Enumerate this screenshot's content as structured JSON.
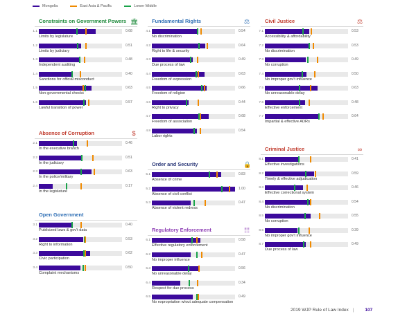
{
  "legend": [
    {
      "name": "Mongolia",
      "color": "#3c0a9c"
    },
    {
      "name": "East Asia & Pacific",
      "color": "#f08a00"
    },
    {
      "name": "Lower Middle",
      "color": "#1aa34a"
    }
  ],
  "colors": {
    "green_section": "#1f8a3c",
    "blue_section": "#2f6fb5",
    "red_section": "#c0392b",
    "purple_section": "#8e3fb5",
    "navy_section": "#2d3a7a"
  },
  "chart_data": {
    "type": "bar",
    "xlim": [
      0,
      1
    ],
    "sections": [
      {
        "key": "constraints",
        "title": "Constraints on Government Powers",
        "color": "#1f8a3c",
        "icon": "building-icon",
        "rows": [
          {
            "code": "1.1",
            "label": "Limits by legislature",
            "score_text": "0.68",
            "value": 0.68,
            "east_asia": 0.57,
            "lower_middle": 0.46
          },
          {
            "code": "1.2",
            "label": "Limits by judiciary",
            "score_text": "0.51",
            "value": 0.51,
            "east_asia": 0.57,
            "lower_middle": 0.47
          },
          {
            "code": "1.3",
            "label": "Independent auditing",
            "score_text": "0.48",
            "value": 0.48,
            "east_asia": 0.55,
            "lower_middle": 0.49
          },
          {
            "code": "1.4",
            "label": "Sanctions for official misconduct",
            "score_text": "0.40",
            "value": 0.4,
            "east_asia": 0.5,
            "lower_middle": 0.4
          },
          {
            "code": "1.5",
            "label": "Non-governmental checks",
            "score_text": "0.63",
            "value": 0.63,
            "east_asia": 0.53,
            "lower_middle": 0.56
          },
          {
            "code": "1.6",
            "label": "Lawful transition of power",
            "score_text": "0.57",
            "value": 0.57,
            "east_asia": 0.6,
            "lower_middle": 0.54
          }
        ]
      },
      {
        "key": "corruption",
        "title": "Absence of Corruption",
        "color": "#c0392b",
        "icon": "money-bag-icon",
        "rows": [
          {
            "code": "2.1",
            "label": "In the executive branch",
            "score_text": "0.46",
            "value": 0.46,
            "east_asia": 0.58,
            "lower_middle": 0.42
          },
          {
            "code": "2.2",
            "label": "In the judiciary",
            "score_text": "0.51",
            "value": 0.51,
            "east_asia": 0.65,
            "lower_middle": 0.52
          },
          {
            "code": "2.3",
            "label": "In the police/military",
            "score_text": "0.63",
            "value": 0.63,
            "east_asia": 0.67,
            "lower_middle": 0.51
          },
          {
            "code": "2.4",
            "label": "In the legislature",
            "score_text": "0.17",
            "value": 0.17,
            "east_asia": 0.51,
            "lower_middle": 0.33
          }
        ]
      },
      {
        "key": "open_gov",
        "title": "Open Government",
        "color": "#2f6fb5",
        "icon": "",
        "rows": [
          {
            "code": "3.1",
            "label": "Publicized laws & gov't data",
            "score_text": "0.40",
            "value": 0.4,
            "east_asia": 0.51,
            "lower_middle": 0.4
          },
          {
            "code": "3.2",
            "label": "Right to information",
            "score_text": "0.53",
            "value": 0.53,
            "east_asia": 0.56,
            "lower_middle": 0.55
          },
          {
            "code": "3.3",
            "label": "Civic participation",
            "score_text": "0.62",
            "value": 0.62,
            "east_asia": 0.56,
            "lower_middle": 0.54
          },
          {
            "code": "3.4",
            "label": "Complaint mechanisms",
            "score_text": "0.50",
            "value": 0.5,
            "east_asia": 0.56,
            "lower_middle": 0.53
          }
        ]
      },
      {
        "key": "fundamental",
        "title": "Fundamental Rights",
        "color": "#2f6fb5",
        "icon": "scales-icon",
        "rows": [
          {
            "code": "4.1",
            "label": "No discrimination",
            "score_text": "0.54",
            "value": 0.54,
            "east_asia": 0.59,
            "lower_middle": 0.55
          },
          {
            "code": "4.2",
            "label": "Right to life & security",
            "score_text": "0.64",
            "value": 0.64,
            "east_asia": 0.67,
            "lower_middle": 0.57
          },
          {
            "code": "4.3",
            "label": "Due process of law",
            "score_text": "0.49",
            "value": 0.49,
            "east_asia": 0.55,
            "lower_middle": 0.47
          },
          {
            "code": "4.4",
            "label": "Freedom of expression",
            "score_text": "0.63",
            "value": 0.63,
            "east_asia": 0.56,
            "lower_middle": 0.53
          },
          {
            "code": "4.5",
            "label": "Freedom of religion",
            "score_text": "0.66",
            "value": 0.66,
            "east_asia": 0.63,
            "lower_middle": 0.6
          },
          {
            "code": "4.6",
            "label": "Right to privacy",
            "score_text": "0.44",
            "value": 0.44,
            "east_asia": 0.56,
            "lower_middle": 0.42
          },
          {
            "code": "4.7",
            "label": "Freedom of association",
            "score_text": "0.68",
            "value": 0.68,
            "east_asia": 0.58,
            "lower_middle": 0.57
          },
          {
            "code": "4.8",
            "label": "Labor rights",
            "score_text": "0.54",
            "value": 0.54,
            "east_asia": 0.58,
            "lower_middle": 0.51
          }
        ]
      },
      {
        "key": "order",
        "title": "Order and Security",
        "color": "#2d3a7a",
        "icon": "lock-icon",
        "rows": [
          {
            "code": "5.1",
            "label": "Absence of crime",
            "score_text": "0.83",
            "value": 0.83,
            "east_asia": 0.78,
            "lower_middle": 0.69
          },
          {
            "code": "5.2",
            "label": "Absence of civil conflict",
            "score_text": "1.00",
            "value": 1.0,
            "east_asia": 0.93,
            "lower_middle": 0.84
          },
          {
            "code": "5.3",
            "label": "Absence of violent redress",
            "score_text": "0.47",
            "value": 0.47,
            "east_asia": 0.64,
            "lower_middle": 0.51
          }
        ]
      },
      {
        "key": "regulatory",
        "title": "Regulatory Enforcement",
        "color": "#8e3fb5",
        "icon": "document-icon",
        "rows": [
          {
            "code": "6.1",
            "label": "Effective regulatory enforcement",
            "score_text": "0.58",
            "value": 0.58,
            "east_asia": 0.54,
            "lower_middle": 0.48
          },
          {
            "code": "6.2",
            "label": "No improper influence",
            "score_text": "0.47",
            "value": 0.47,
            "east_asia": 0.6,
            "lower_middle": 0.54
          },
          {
            "code": "6.3",
            "label": "No unreasonable delay",
            "score_text": "0.56",
            "value": 0.56,
            "east_asia": 0.57,
            "lower_middle": 0.44
          },
          {
            "code": "6.4",
            "label": "Respect for due process",
            "score_text": "0.34",
            "value": 0.34,
            "east_asia": 0.55,
            "lower_middle": 0.45
          },
          {
            "code": "6.5",
            "label": "No expropriation w/out adequate compensation",
            "score_text": "0.49",
            "value": 0.49,
            "east_asia": 0.56,
            "lower_middle": 0.54
          }
        ]
      },
      {
        "key": "civil",
        "title": "Civil Justice",
        "color": "#c0392b",
        "icon": "scales-icon",
        "rows": [
          {
            "code": "7.1",
            "label": "Accessibility & affordability",
            "score_text": "0.53",
            "value": 0.53,
            "east_asia": 0.56,
            "lower_middle": 0.46
          },
          {
            "code": "7.2",
            "label": "No discrimination",
            "score_text": "0.53",
            "value": 0.53,
            "east_asia": 0.58,
            "lower_middle": 0.53
          },
          {
            "code": "7.3",
            "label": "No corruption",
            "score_text": "0.49",
            "value": 0.49,
            "east_asia": 0.63,
            "lower_middle": 0.52
          },
          {
            "code": "7.4",
            "label": "No improper gov't influence",
            "score_text": "0.50",
            "value": 0.5,
            "east_asia": 0.6,
            "lower_middle": 0.45
          },
          {
            "code": "7.5",
            "label": "No unreasonable delay",
            "score_text": "0.63",
            "value": 0.63,
            "east_asia": 0.55,
            "lower_middle": 0.42
          },
          {
            "code": "7.6",
            "label": "Effective enforcement",
            "score_text": "0.48",
            "value": 0.48,
            "east_asia": 0.53,
            "lower_middle": 0.42
          },
          {
            "code": "7.7",
            "label": "Impartial & effective ADRs",
            "score_text": "0.64",
            "value": 0.64,
            "east_asia": 0.7,
            "lower_middle": 0.65
          }
        ]
      },
      {
        "key": "criminal",
        "title": "Criminal Justice",
        "color": "#c0392b",
        "icon": "handcuffs-icon",
        "rows": [
          {
            "code": "8.1",
            "label": "Effective investigations",
            "score_text": "0.41",
            "value": 0.41,
            "east_asia": 0.55,
            "lower_middle": 0.41
          },
          {
            "code": "8.2",
            "label": "Timely & effective adjudication",
            "score_text": "0.59",
            "value": 0.59,
            "east_asia": 0.61,
            "lower_middle": 0.49
          },
          {
            "code": "8.3",
            "label": "Effective correctional system",
            "score_text": "0.46",
            "value": 0.46,
            "east_asia": 0.51,
            "lower_middle": 0.36
          },
          {
            "code": "8.4",
            "label": "No discrimination",
            "score_text": "0.54",
            "value": 0.54,
            "east_asia": 0.55,
            "lower_middle": 0.52
          },
          {
            "code": "8.5",
            "label": "No corruption",
            "score_text": "0.55",
            "value": 0.55,
            "east_asia": 0.66,
            "lower_middle": 0.48
          },
          {
            "code": "8.6",
            "label": "No improper gov't influence",
            "score_text": "0.39",
            "value": 0.39,
            "east_asia": 0.53,
            "lower_middle": 0.41
          },
          {
            "code": "8.7",
            "label": "Due process of law",
            "score_text": "0.49",
            "value": 0.49,
            "east_asia": 0.55,
            "lower_middle": 0.47
          }
        ]
      }
    ]
  },
  "footer": {
    "title": "2019 WJP Rule of Law Index",
    "page": "107"
  }
}
